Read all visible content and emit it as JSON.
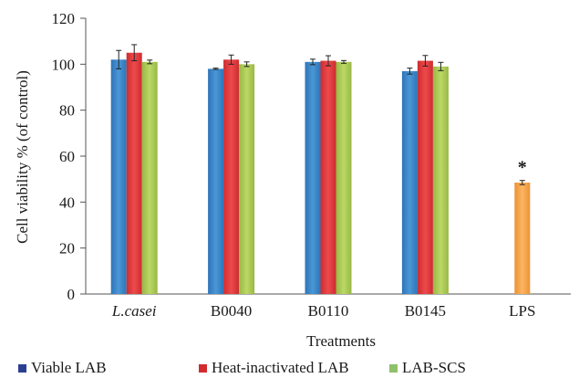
{
  "chart_data": {
    "type": "bar",
    "xlabel": "Treatments",
    "ylabel": "Cell viability % (of control)",
    "ylim": [
      0,
      120
    ],
    "yticks": [
      0,
      20,
      40,
      60,
      80,
      100,
      120
    ],
    "grid": false,
    "legend_position": "bottom",
    "categories": [
      "L.casei",
      "B0040",
      "B0110",
      "B0145",
      "LPS"
    ],
    "category_italic": [
      true,
      false,
      false,
      false,
      false
    ],
    "series": [
      {
        "name": "Viable LAB",
        "color": "#3a86c8",
        "legend_color": "#2b3f91",
        "values": [
          102,
          98,
          101,
          97,
          null
        ],
        "errors": [
          4,
          0.3,
          1.2,
          1.3,
          null
        ]
      },
      {
        "name": "Heat-inactivated LAB",
        "color": "#e0393c",
        "legend_color": "#d22a2e",
        "values": [
          105,
          102,
          101.5,
          101.5,
          null
        ],
        "errors": [
          3.5,
          2,
          2.2,
          2.3,
          null
        ]
      },
      {
        "name": "LAB-SCS",
        "color": "#a8c84a",
        "legend_color": "#8fc16a",
        "values": [
          101,
          100,
          101,
          99,
          null
        ],
        "errors": [
          0.8,
          1,
          0.6,
          1.8,
          null
        ]
      }
    ],
    "extra_bars": [
      {
        "category": "LPS",
        "value": 48.5,
        "error": 0.9,
        "color": "#f5a24a",
        "annotation": "*"
      }
    ]
  }
}
